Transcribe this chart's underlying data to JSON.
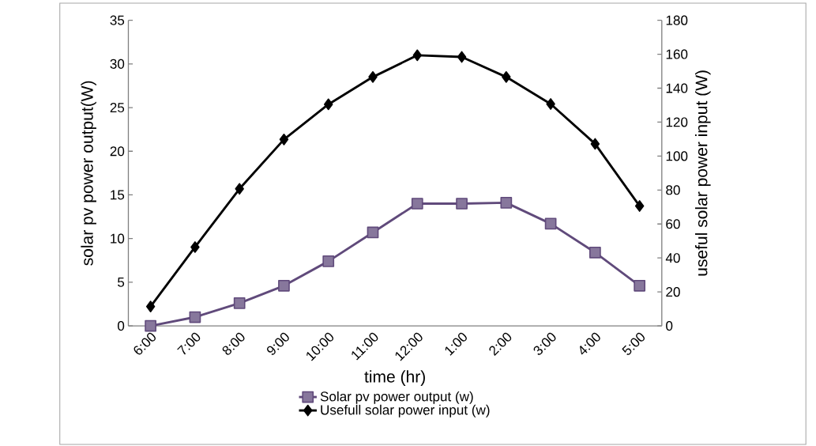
{
  "chart_data": {
    "type": "line",
    "xlabel": "time (hr)",
    "ylabel": "solar pv power output(W)",
    "y2label": "useful solar power input (W)",
    "categories": [
      "6:00",
      "7:00",
      "8:00",
      "9:00",
      "10:00",
      "11:00",
      "12:00",
      "1:00",
      "2:00",
      "3:00",
      "4:00",
      "5:00"
    ],
    "series": [
      {
        "name": "Solar pv power output (w)",
        "color": "#604a7b",
        "marker": "square",
        "values": [
          0.0,
          1.0,
          2.6,
          4.6,
          7.4,
          10.7,
          14.0,
          14.0,
          14.1,
          11.7,
          8.4,
          4.6
        ]
      },
      {
        "name": "Usefull solar power input (w)",
        "color": "#000000",
        "marker": "diamond",
        "axis": "y2",
        "values": [
          11.4,
          46.4,
          80.7,
          109.8,
          130.5,
          146.6,
          159.4,
          158.4,
          146.6,
          130.7,
          107.2,
          70.6
        ]
      }
    ],
    "ylim": [
      0,
      35
    ],
    "yticks": [
      0,
      5,
      10,
      15,
      20,
      25,
      30,
      35
    ],
    "y2lim": [
      0,
      180
    ],
    "y2ticks": [
      0,
      20,
      40,
      60,
      80,
      100,
      120,
      140,
      160,
      180
    ],
    "legend": "bottom"
  }
}
